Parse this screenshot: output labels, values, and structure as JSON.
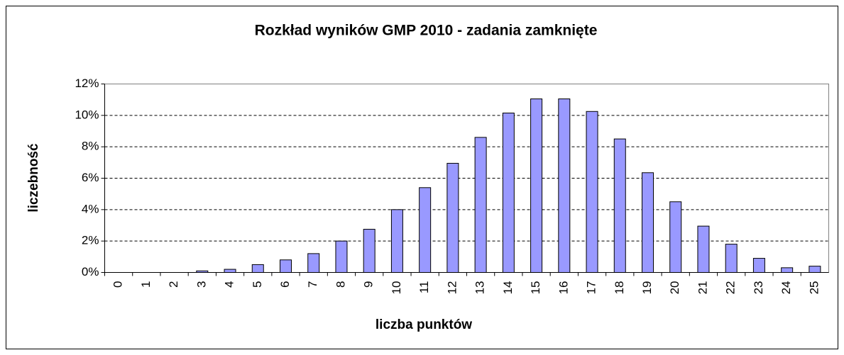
{
  "chart_data": {
    "type": "bar",
    "title": "Rozkład wyników GMP 2010 - zadania zamknięte",
    "x_label": "liczba punktów",
    "y_label": "liczebność",
    "categories": [
      "0",
      "1",
      "2",
      "3",
      "4",
      "5",
      "6",
      "7",
      "8",
      "9",
      "10",
      "11",
      "12",
      "13",
      "14",
      "15",
      "16",
      "17",
      "18",
      "19",
      "20",
      "21",
      "22",
      "23",
      "24",
      "25"
    ],
    "values": [
      0,
      0,
      0,
      0.1,
      0.2,
      0.5,
      0.8,
      1.2,
      2.0,
      2.75,
      4.0,
      5.4,
      6.95,
      8.6,
      10.15,
      11.05,
      11.05,
      10.25,
      8.5,
      6.35,
      4.5,
      2.95,
      1.8,
      0.9,
      0.3,
      0.4
    ],
    "color": "#9999ff",
    "ylim": [
      0,
      12
    ],
    "yticks": [
      {
        "value": 0,
        "label": "0%"
      },
      {
        "value": 2,
        "label": "2%"
      },
      {
        "value": 4,
        "label": "4%"
      },
      {
        "value": 6,
        "label": "6%"
      },
      {
        "value": 8,
        "label": "8%"
      },
      {
        "value": 10,
        "label": "10%"
      },
      {
        "value": 12,
        "label": "12%"
      }
    ],
    "grid": true
  }
}
